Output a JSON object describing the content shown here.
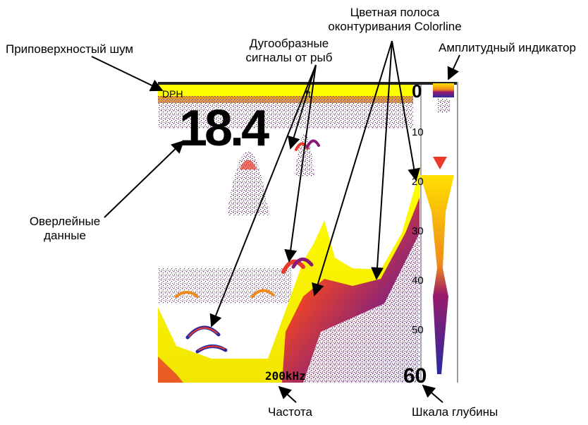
{
  "callouts": {
    "surface_noise": "Приповерхностый шум",
    "fish_arcs": [
      "Дугообразные",
      "сигналы от рыб"
    ],
    "colorline": [
      "Цветная полоса",
      "оконтуривания Colorline"
    ],
    "amplitude": "Амплитудный индикатор",
    "overlay": [
      "Оверлейные",
      "данные"
    ],
    "frequency": "Частота",
    "depth_scale": "Шкала глубины"
  },
  "sonar": {
    "depth_label": "DPH",
    "depth_value": "18.4",
    "unit": "ft",
    "frequency": "200kHz",
    "scale_ticks": [
      "0",
      "10",
      "20",
      "30",
      "40",
      "50",
      "60"
    ]
  },
  "colors": {
    "background": "#ffffff",
    "bottom_fill": "#ffff00",
    "noise": "#8a1a7a",
    "strong_return": "#e8392b",
    "weak_return": "#3a2aa8"
  }
}
